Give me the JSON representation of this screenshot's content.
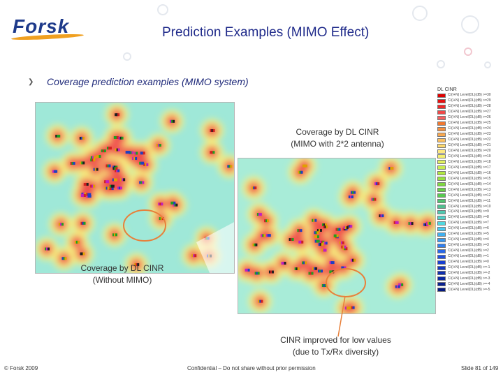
{
  "header": {
    "logo_text": "Forsk",
    "title": "Prediction Examples (MIMO Effect)"
  },
  "bullet": {
    "text": "Coverage prediction examples (MIMO system)"
  },
  "captions": {
    "mimo_line1": "Coverage by DL CINR",
    "mimo_line2": "(MIMO with 2*2 antenna)",
    "nomimo_line1": "Coverage by DL CINR",
    "nomimo_line2": "(Without MIMO)",
    "improve_line1": "CINR improved for low values",
    "improve_line2": "(due to Tx/Rx diversity)"
  },
  "legend": {
    "title": "DL CINR",
    "items": [
      {
        "label": "C/(I+N) Level(DL)(dB) >=30",
        "color": "#e00000"
      },
      {
        "label": "C/(I+N) Level(DL)(dB) >=29",
        "color": "#e81010"
      },
      {
        "label": "C/(I+N) Level(DL)(dB) >=28",
        "color": "#f02828"
      },
      {
        "label": "C/(I+N) Level(DL)(dB) >=27",
        "color": "#f04848"
      },
      {
        "label": "C/(I+N) Level(DL)(dB) >=26",
        "color": "#f46060"
      },
      {
        "label": "C/(I+N) Level(DL)(dB) >=25",
        "color": "#f07830"
      },
      {
        "label": "C/(I+N) Level(DL)(dB) >=24",
        "color": "#f49040"
      },
      {
        "label": "C/(I+N) Level(DL)(dB) >=23",
        "color": "#f8a850"
      },
      {
        "label": "C/(I+N) Level(DL)(dB) >=22",
        "color": "#fcc060"
      },
      {
        "label": "C/(I+N) Level(DL)(dB) >=21",
        "color": "#fcd870"
      },
      {
        "label": "C/(I+N) Level(DL)(dB) >=20",
        "color": "#fce880"
      },
      {
        "label": "C/(I+N) Level(DL)(dB) >=19",
        "color": "#f4f070"
      },
      {
        "label": "C/(I+N) Level(DL)(dB) >=18",
        "color": "#e0f060"
      },
      {
        "label": "C/(I+N) Level(DL)(dB) >=17",
        "color": "#c8ec50"
      },
      {
        "label": "C/(I+N) Level(DL)(dB) >=16",
        "color": "#b0e840"
      },
      {
        "label": "C/(I+N) Level(DL)(dB) >=15",
        "color": "#98e040"
      },
      {
        "label": "C/(I+N) Level(DL)(dB) >=14",
        "color": "#80d840"
      },
      {
        "label": "C/(I+N) Level(DL)(dB) >=13",
        "color": "#68d048"
      },
      {
        "label": "C/(I+N) Level(DL)(dB) >=12",
        "color": "#58c850"
      },
      {
        "label": "C/(I+N) Level(DL)(dB) >=11",
        "color": "#50c070"
      },
      {
        "label": "C/(I+N) Level(DL)(dB) >=10",
        "color": "#50c090"
      },
      {
        "label": "C/(I+N) Level(DL)(dB) >=9",
        "color": "#50c8b0"
      },
      {
        "label": "C/(I+N) Level(DL)(dB) >=8",
        "color": "#50d0c8"
      },
      {
        "label": "C/(I+N) Level(DL)(dB) >=7",
        "color": "#50d8e0"
      },
      {
        "label": "C/(I+N) Level(DL)(dB) >=6",
        "color": "#48c8f0"
      },
      {
        "label": "C/(I+N) Level(DL)(dB) >=5",
        "color": "#40b0f0"
      },
      {
        "label": "C/(I+N) Level(DL)(dB) >=4",
        "color": "#3898f0"
      },
      {
        "label": "C/(I+N) Level(DL)(dB) >=3",
        "color": "#3080f0"
      },
      {
        "label": "C/(I+N) Level(DL)(dB) >=2",
        "color": "#2868e8"
      },
      {
        "label": "C/(I+N) Level(DL)(dB) >=1",
        "color": "#2050e0"
      },
      {
        "label": "C/(I+N) Level(DL)(dB) >=0",
        "color": "#1840d0"
      },
      {
        "label": "C/(I+N) Level(DL)(dB) >=-1",
        "color": "#1438c0"
      },
      {
        "label": "C/(I+N) Level(DL)(dB) >=-2",
        "color": "#1030b0"
      },
      {
        "label": "C/(I+N) Level(DL)(dB) >=-3",
        "color": "#0c28a0"
      },
      {
        "label": "C/(I+N) Level(DL)(dB) >=-4",
        "color": "#082090"
      },
      {
        "label": "C/(I+N) Level(DL)(dB) >=-5",
        "color": "#041880"
      }
    ]
  },
  "footer": {
    "copyright": "© Forsk 2009",
    "confidential": "Confidential – Do not share without prior permission",
    "slide": "Slide 81 of 149"
  },
  "colors": {
    "map_background": "#9fe8d8",
    "hotspot_red": "#f05050",
    "hotspot_yellow": "#f6f080",
    "highlight_circle": "#e8803a"
  }
}
